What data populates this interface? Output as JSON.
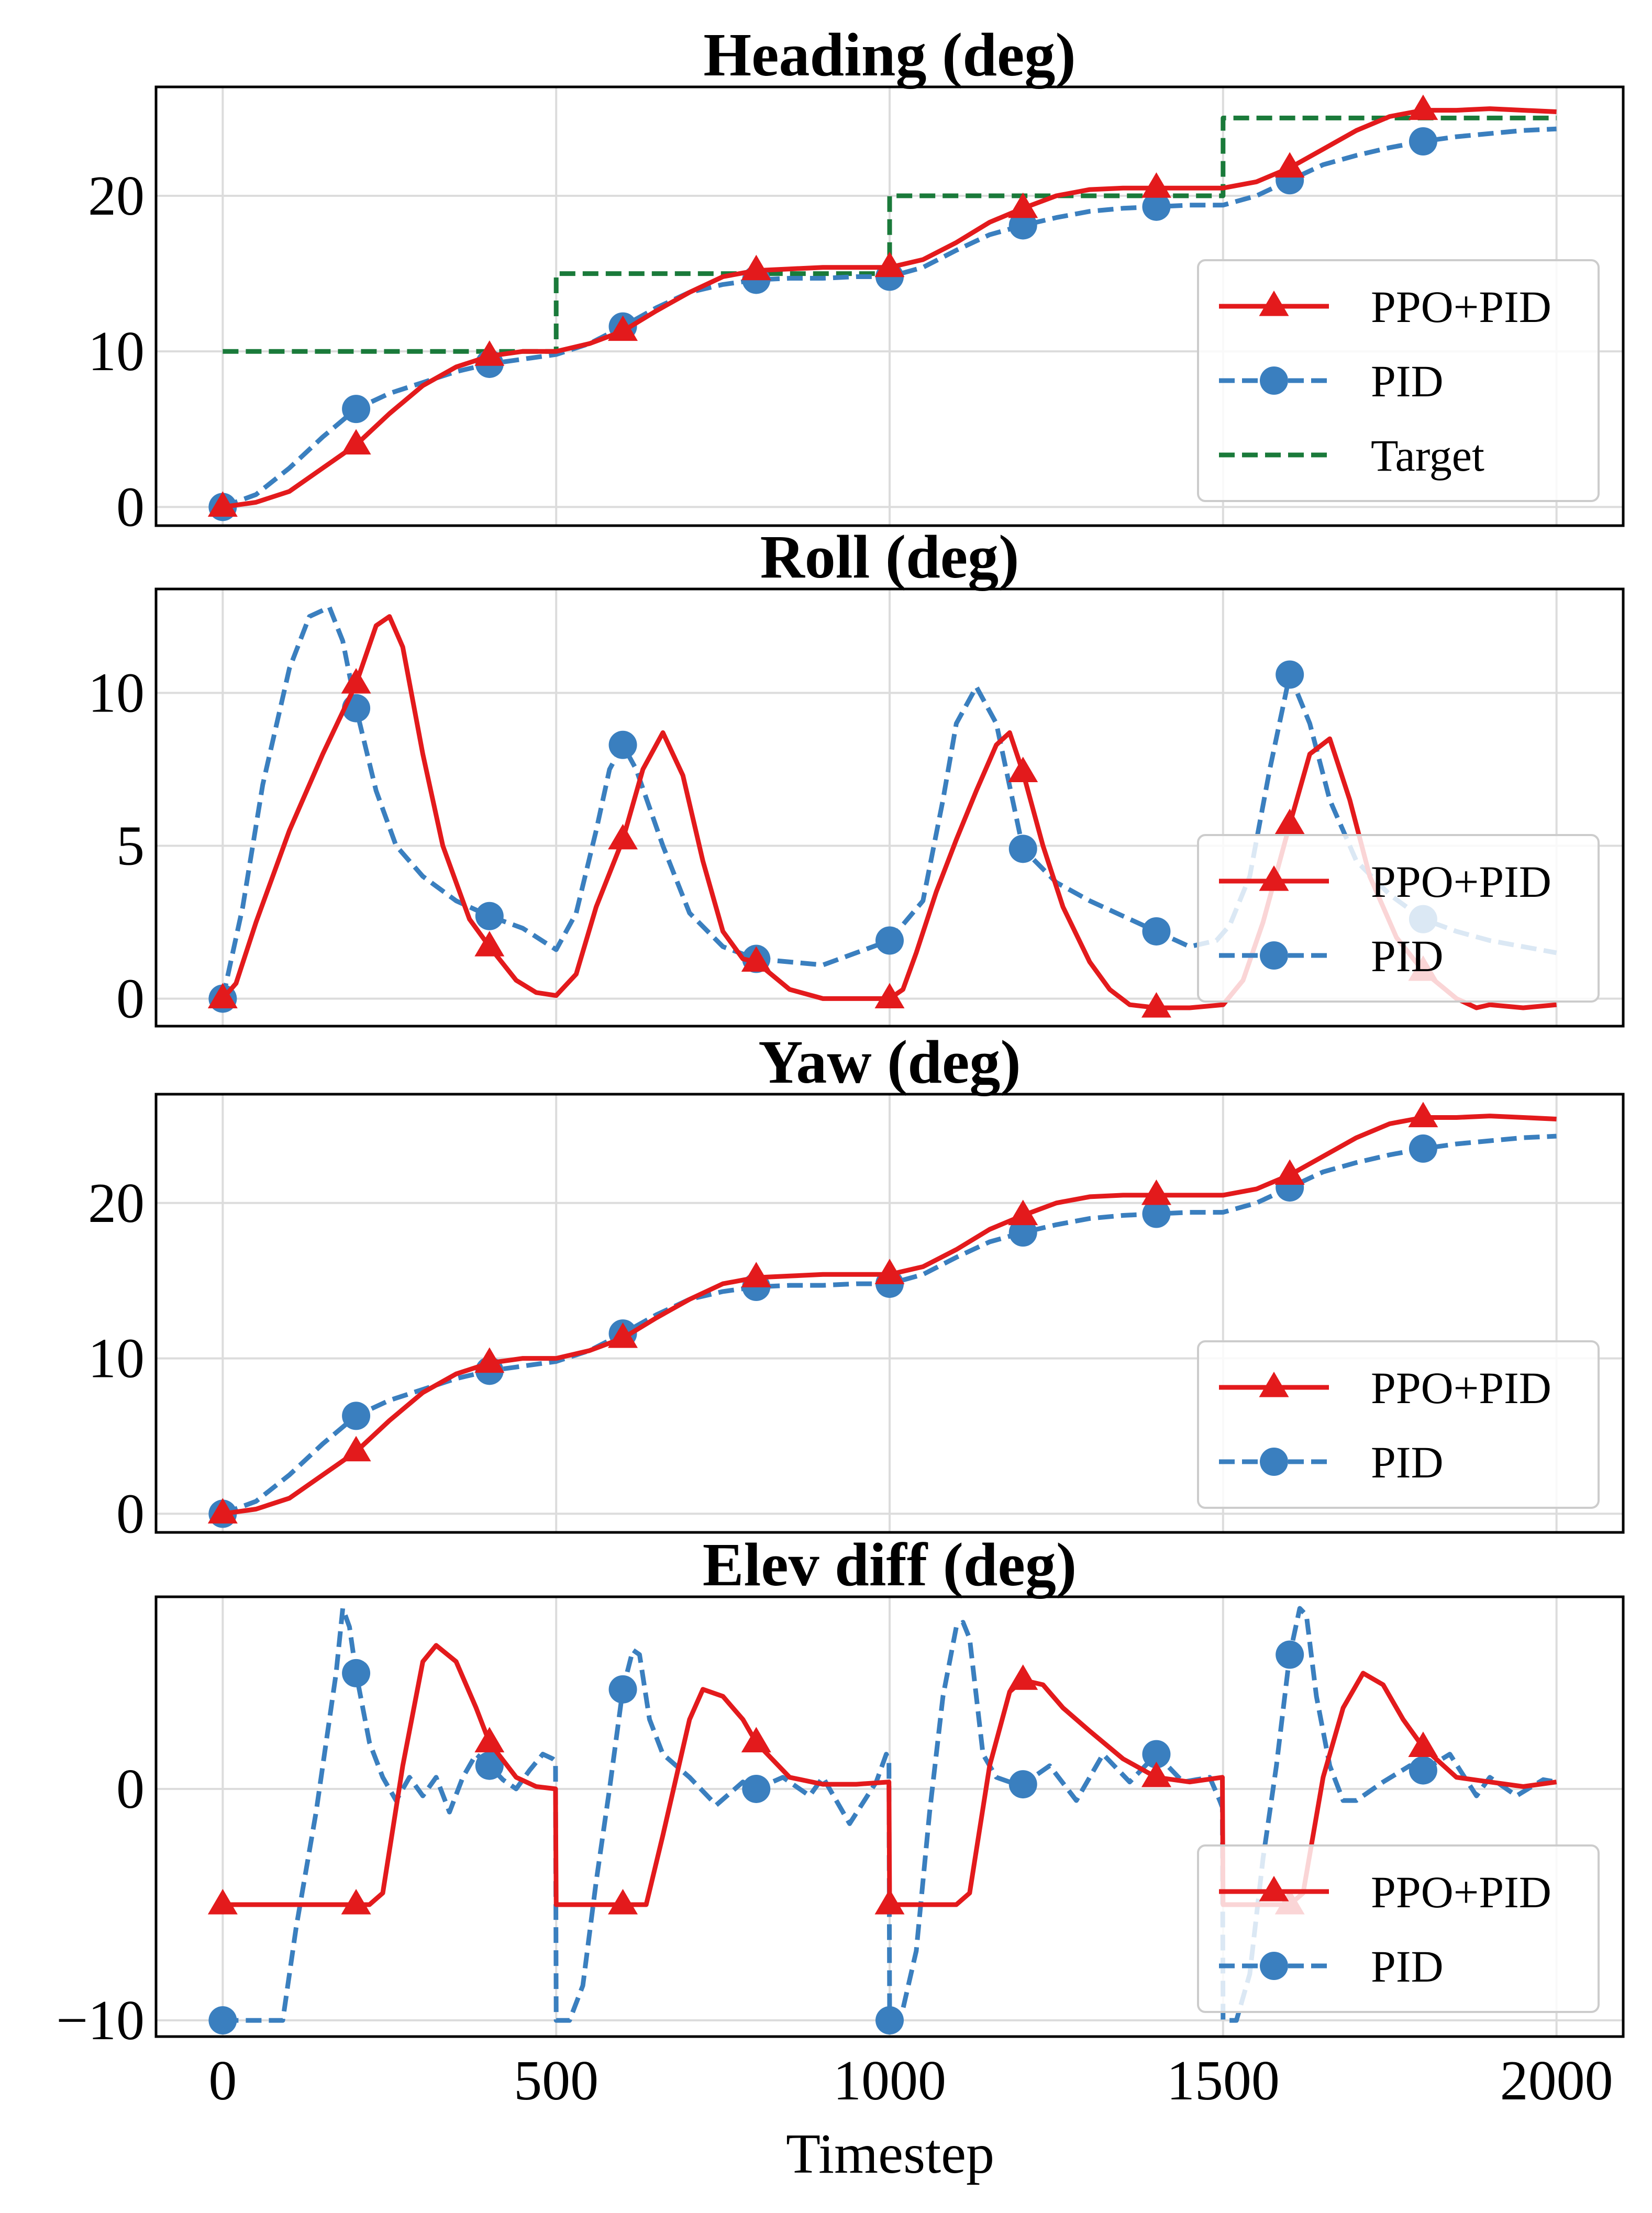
{
  "figure": {
    "xlabel": "Timestep"
  },
  "colors": {
    "ppo": "#e31a1c",
    "pid": "#3a7fbf",
    "target": "#1a7a3a"
  },
  "chart_data": [
    {
      "type": "line",
      "title": "Heading (deg)",
      "xlim": [
        -100,
        2100
      ],
      "ylim": [
        -1.2,
        27
      ],
      "yticks": [
        0,
        10,
        20
      ],
      "xticks": [
        0,
        500,
        1000,
        1500,
        2000
      ],
      "legend": "lower-right",
      "series": [
        {
          "name": "PPO+PID",
          "style": "solid",
          "marker": "triangle",
          "x": [
            0,
            50,
            100,
            150,
            200,
            250,
            300,
            350,
            400,
            450,
            500,
            550,
            600,
            650,
            700,
            750,
            800,
            850,
            900,
            950,
            1000,
            1050,
            1100,
            1150,
            1200,
            1250,
            1300,
            1350,
            1400,
            1450,
            1500,
            1550,
            1600,
            1650,
            1700,
            1750,
            1800,
            1850,
            1900,
            1950,
            2000
          ],
          "y": [
            0,
            0.3,
            1,
            2.5,
            4,
            6,
            7.8,
            9,
            9.7,
            10,
            10,
            10.5,
            11.3,
            12.6,
            13.8,
            14.8,
            15.2,
            15.3,
            15.4,
            15.4,
            15.4,
            15.9,
            17,
            18.3,
            19.2,
            20,
            20.4,
            20.5,
            20.5,
            20.5,
            20.5,
            20.9,
            21.8,
            23,
            24.2,
            25.1,
            25.5,
            25.5,
            25.6,
            25.5,
            25.4
          ],
          "markers_at": [
            0,
            200,
            400,
            600,
            800,
            1000,
            1200,
            1400,
            1600,
            1800
          ]
        },
        {
          "name": "PID",
          "style": "dashed",
          "marker": "circle",
          "x": [
            0,
            50,
            100,
            150,
            200,
            250,
            300,
            350,
            400,
            450,
            500,
            550,
            600,
            650,
            700,
            750,
            800,
            850,
            900,
            950,
            1000,
            1050,
            1100,
            1150,
            1200,
            1250,
            1300,
            1350,
            1400,
            1450,
            1500,
            1550,
            1600,
            1650,
            1700,
            1750,
            1800,
            1850,
            1900,
            1950,
            2000
          ],
          "y": [
            0,
            0.8,
            2.5,
            4.5,
            6.3,
            7.3,
            8,
            8.7,
            9.2,
            9.5,
            9.8,
            10.5,
            11.6,
            12.8,
            13.8,
            14.3,
            14.6,
            14.7,
            14.7,
            14.8,
            14.8,
            15.4,
            16.5,
            17.5,
            18.1,
            18.6,
            19,
            19.2,
            19.3,
            19.4,
            19.4,
            20,
            21,
            22,
            22.6,
            23.1,
            23.5,
            23.8,
            24,
            24.2,
            24.3
          ],
          "markers_at": [
            0,
            200,
            400,
            600,
            800,
            1000,
            1200,
            1400,
            1600,
            1800
          ]
        },
        {
          "name": "Target",
          "style": "dashed",
          "marker": "none",
          "x": [
            0,
            500,
            500,
            1000,
            1000,
            1500,
            1500,
            2000
          ],
          "y": [
            10,
            10,
            15,
            15,
            20,
            20,
            25,
            25
          ],
          "markers_at": []
        }
      ]
    },
    {
      "type": "line",
      "title": "Roll (deg)",
      "xlim": [
        -100,
        2100
      ],
      "ylim": [
        -0.9,
        13.4
      ],
      "yticks": [
        0,
        5,
        10
      ],
      "xticks": [
        0,
        500,
        1000,
        1500,
        2000
      ],
      "legend": "lower-right",
      "series": [
        {
          "name": "PPO+PID",
          "style": "solid",
          "marker": "triangle",
          "x": [
            0,
            20,
            50,
            100,
            150,
            200,
            230,
            250,
            270,
            300,
            330,
            370,
            400,
            440,
            470,
            500,
            530,
            560,
            600,
            630,
            660,
            690,
            720,
            750,
            780,
            800,
            850,
            900,
            950,
            1000,
            1020,
            1040,
            1070,
            1100,
            1130,
            1160,
            1180,
            1200,
            1230,
            1260,
            1300,
            1330,
            1360,
            1400,
            1450,
            1500,
            1530,
            1560,
            1600,
            1630,
            1660,
            1690,
            1720,
            1760,
            1800,
            1850,
            1880,
            1900,
            1950,
            2000
          ],
          "y": [
            0,
            0.5,
            2.5,
            5.5,
            8,
            10.3,
            12.2,
            12.5,
            11.5,
            8,
            5,
            2.6,
            1.7,
            0.6,
            0.2,
            0.1,
            0.8,
            3,
            5.2,
            7.5,
            8.7,
            7.3,
            4.5,
            2.2,
            1.3,
            1.2,
            0.3,
            0,
            0,
            0,
            0.3,
            1.5,
            3.5,
            5.2,
            6.8,
            8.3,
            8.7,
            7.4,
            5,
            3,
            1.2,
            0.3,
            -0.2,
            -0.3,
            -0.3,
            -0.2,
            0.6,
            2.5,
            5.7,
            8,
            8.5,
            6.5,
            4,
            2,
            0.9,
            0,
            -0.3,
            -0.2,
            -0.3,
            -0.2
          ],
          "markers_at": [
            0,
            200,
            400,
            600,
            800,
            1000,
            1200,
            1400,
            1600,
            1800
          ]
        },
        {
          "name": "PID",
          "style": "dashed",
          "marker": "circle",
          "x": [
            0,
            30,
            60,
            100,
            130,
            160,
            180,
            200,
            230,
            260,
            300,
            350,
            400,
            450,
            500,
            530,
            560,
            580,
            600,
            620,
            660,
            700,
            750,
            800,
            850,
            900,
            950,
            1000,
            1050,
            1080,
            1100,
            1130,
            1160,
            1200,
            1250,
            1300,
            1350,
            1400,
            1450,
            1490,
            1510,
            1540,
            1570,
            1600,
            1630,
            1660,
            1700,
            1750,
            1800,
            1850,
            1900,
            1950,
            2000
          ],
          "y": [
            0,
            3,
            7,
            10.8,
            12.5,
            12.8,
            11.7,
            9.5,
            6.8,
            5,
            4,
            3.2,
            2.7,
            2.3,
            1.6,
            2.8,
            5.5,
            7.5,
            8.3,
            7.5,
            5,
            2.8,
            1.7,
            1.3,
            1.2,
            1.1,
            1.5,
            1.9,
            3.2,
            6.5,
            9,
            10.2,
            9,
            4.9,
            3.8,
            3.2,
            2.7,
            2.2,
            1.7,
            1.9,
            2.4,
            4,
            7.5,
            10.6,
            9,
            6.5,
            4.5,
            3.4,
            2.6,
            2.2,
            1.9,
            1.7,
            1.5
          ],
          "markers_at": [
            0,
            200,
            400,
            600,
            800,
            1000,
            1200,
            1400,
            1600,
            1800
          ]
        }
      ]
    },
    {
      "type": "line",
      "title": "Yaw (deg)",
      "xlim": [
        -100,
        2100
      ],
      "ylim": [
        -1.2,
        27
      ],
      "yticks": [
        0,
        10,
        20
      ],
      "xticks": [
        0,
        500,
        1000,
        1500,
        2000
      ],
      "legend": "lower-right",
      "series": [
        {
          "name": "PPO+PID",
          "style": "solid",
          "marker": "triangle",
          "x": [
            0,
            50,
            100,
            150,
            200,
            250,
            300,
            350,
            400,
            450,
            500,
            550,
            600,
            650,
            700,
            750,
            800,
            850,
            900,
            950,
            1000,
            1050,
            1100,
            1150,
            1200,
            1250,
            1300,
            1350,
            1400,
            1450,
            1500,
            1550,
            1600,
            1650,
            1700,
            1750,
            1800,
            1850,
            1900,
            1950,
            2000
          ],
          "y": [
            0,
            0.3,
            1,
            2.5,
            4,
            6,
            7.8,
            9,
            9.7,
            10,
            10,
            10.5,
            11.3,
            12.6,
            13.8,
            14.8,
            15.2,
            15.3,
            15.4,
            15.4,
            15.4,
            15.9,
            17,
            18.3,
            19.2,
            20,
            20.4,
            20.5,
            20.5,
            20.5,
            20.5,
            20.9,
            21.8,
            23,
            24.2,
            25.1,
            25.5,
            25.5,
            25.6,
            25.5,
            25.4
          ],
          "markers_at": [
            0,
            200,
            400,
            600,
            800,
            1000,
            1200,
            1400,
            1600,
            1800
          ]
        },
        {
          "name": "PID",
          "style": "dashed",
          "marker": "circle",
          "x": [
            0,
            50,
            100,
            150,
            200,
            250,
            300,
            350,
            400,
            450,
            500,
            550,
            600,
            650,
            700,
            750,
            800,
            850,
            900,
            950,
            1000,
            1050,
            1100,
            1150,
            1200,
            1250,
            1300,
            1350,
            1400,
            1450,
            1500,
            1550,
            1600,
            1650,
            1700,
            1750,
            1800,
            1850,
            1900,
            1950,
            2000
          ],
          "y": [
            0,
            0.8,
            2.5,
            4.5,
            6.3,
            7.3,
            8,
            8.7,
            9.2,
            9.5,
            9.8,
            10.5,
            11.6,
            12.8,
            13.8,
            14.3,
            14.6,
            14.7,
            14.7,
            14.8,
            14.8,
            15.4,
            16.5,
            17.5,
            18.1,
            18.6,
            19,
            19.2,
            19.3,
            19.4,
            19.4,
            20,
            21,
            22,
            22.6,
            23.1,
            23.5,
            23.8,
            24,
            24.2,
            24.3
          ],
          "markers_at": [
            0,
            200,
            400,
            600,
            800,
            1000,
            1200,
            1400,
            1600,
            1800
          ]
        }
      ]
    },
    {
      "type": "line",
      "title": "Elev diff (deg)",
      "xlim": [
        -100,
        2100
      ],
      "ylim": [
        -10.7,
        8.3
      ],
      "yticks": [
        -10,
        0
      ],
      "xticks": [
        0,
        500,
        1000,
        1500,
        2000
      ],
      "legend": "lower-right",
      "series": [
        {
          "name": "PPO+PID",
          "style": "solid",
          "marker": "triangle",
          "x": [
            0,
            200,
            220,
            240,
            270,
            300,
            320,
            350,
            380,
            400,
            440,
            470,
            499,
            500,
            520,
            600,
            635,
            660,
            700,
            720,
            750,
            780,
            800,
            850,
            900,
            950,
            999,
            1000,
            1020,
            1100,
            1120,
            1150,
            1180,
            1200,
            1230,
            1260,
            1300,
            1350,
            1400,
            1450,
            1499,
            1500,
            1520,
            1600,
            1620,
            1650,
            1680,
            1710,
            1740,
            1770,
            1800,
            1850,
            1900,
            1950,
            2000
          ],
          "y": [
            -5,
            -5,
            -5,
            -4.5,
            1,
            5.5,
            6.2,
            5.5,
            3.5,
            2,
            0.5,
            0.1,
            0,
            -5,
            -5,
            -5,
            -5,
            -2,
            3,
            4.3,
            4,
            3,
            2,
            0.5,
            0.2,
            0.2,
            0.3,
            -5,
            -5,
            -5,
            -4.5,
            1,
            4.2,
            4.7,
            4.5,
            3.5,
            2.5,
            1.3,
            0.5,
            0.3,
            0.5,
            -5,
            -5,
            -5,
            -4.5,
            0.5,
            3.5,
            5,
            4.5,
            3,
            1.8,
            0.5,
            0.3,
            0.1,
            0.3
          ],
          "markers_at": [
            0,
            200,
            400,
            600,
            800,
            1000,
            1200,
            1400,
            1600,
            1800
          ]
        },
        {
          "name": "PID",
          "style": "dashed",
          "marker": "circle",
          "x": [
            0,
            50,
            90,
            110,
            140,
            170,
            180,
            190,
            200,
            220,
            240,
            260,
            280,
            300,
            320,
            340,
            360,
            380,
            400,
            420,
            440,
            460,
            480,
            495,
            499,
            500,
            520,
            540,
            560,
            580,
            600,
            615,
            625,
            640,
            660,
            680,
            700,
            740,
            780,
            800,
            840,
            880,
            900,
            940,
            980,
            995,
            999,
            1000,
            1020,
            1040,
            1060,
            1080,
            1100,
            1110,
            1120,
            1140,
            1160,
            1180,
            1200,
            1240,
            1280,
            1320,
            1360,
            1400,
            1440,
            1480,
            1495,
            1499,
            1500,
            1520,
            1540,
            1560,
            1580,
            1600,
            1615,
            1625,
            1640,
            1660,
            1680,
            1700,
            1740,
            1780,
            1800,
            1840,
            1880,
            1900,
            1940,
            1980,
            2000
          ],
          "y": [
            -10,
            -10,
            -10,
            -6,
            -1,
            5,
            7.8,
            7,
            5,
            2,
            0.5,
            -0.5,
            0.5,
            -0.3,
            0.5,
            -1,
            0.5,
            1.5,
            1,
            0.4,
            0,
            0.8,
            1.5,
            1.3,
            1.2,
            -10,
            -10,
            -8.5,
            -4,
            0,
            4.3,
            6,
            5.8,
            3,
            1.5,
            1,
            0.5,
            -0.7,
            0.3,
            0,
            0.5,
            -0.3,
            0.5,
            -1.5,
            0.3,
            1.5,
            1.2,
            -10,
            -9.5,
            -7,
            -1,
            4,
            7,
            7.2,
            6.5,
            1.5,
            0.5,
            0.3,
            0.2,
            1,
            -0.5,
            1.5,
            0.3,
            1.5,
            0.3,
            0.5,
            -0.5,
            -0.8,
            -10,
            -10,
            -8,
            -3,
            1,
            5.8,
            7.8,
            7.5,
            4,
            1,
            -0.5,
            -0.5,
            0.3,
            1,
            0.8,
            1.5,
            -0.3,
            0.5,
            -0.3,
            0.4,
            0.3
          ],
          "markers_at": [
            0,
            200,
            400,
            600,
            800,
            1000,
            1200,
            1400,
            1600,
            1800
          ]
        }
      ]
    }
  ]
}
